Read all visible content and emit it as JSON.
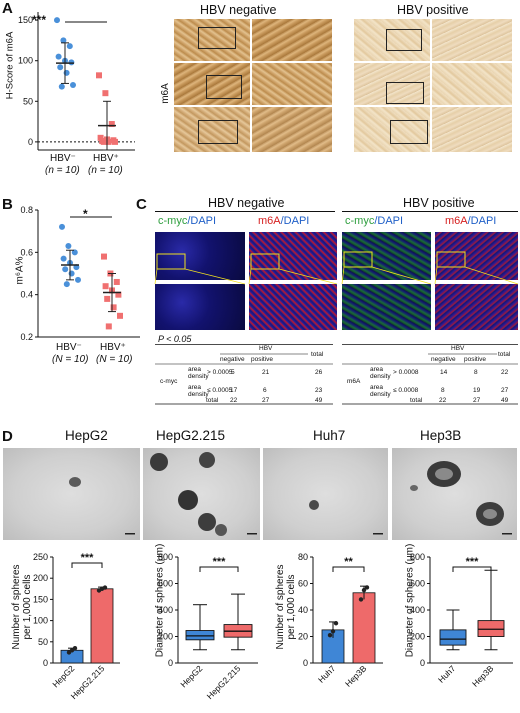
{
  "panels": {
    "A": {
      "label": "A",
      "ylabel": "H-Score of m6A",
      "yticks": [
        "150",
        "100",
        "50",
        "0"
      ],
      "sig": "***",
      "groups": [
        {
          "name": "HBV⁻",
          "n": "(n = 10)",
          "color": "#4a90d9"
        },
        {
          "name": "HBV⁺",
          "n": "(n = 10)",
          "color": "#f07070"
        }
      ],
      "neg_title": "HBV negative",
      "pos_title": "HBV positive",
      "row_label": "m6A"
    },
    "B": {
      "label": "B",
      "ylabel": "m⁶A%",
      "yticks": [
        "0.8",
        "0.6",
        "0.4",
        "0.2"
      ],
      "sig": "*",
      "groups": [
        {
          "name": "HBV⁻",
          "n": "(N = 10)"
        },
        {
          "name": "HBV⁺",
          "n": "(N = 10)"
        }
      ]
    },
    "C": {
      "label": "C",
      "neg_title": "HBV negative",
      "pos_title": "HBV positive",
      "col_labels": [
        {
          "a": "c-myc",
          "b": "/DAPI",
          "color": "#2e9e3e"
        },
        {
          "a": "m6A",
          "b": "/DAPI",
          "color": "#d62020"
        },
        {
          "a": "c-myc",
          "b": "/DAPI",
          "color": "#2e9e3e"
        },
        {
          "a": "m6A",
          "b": "/DAPI",
          "color": "#d62020"
        }
      ],
      "pvalue": "P < 0.05",
      "table1": {
        "hbv": "HBV",
        "cols": [
          "negative",
          "positive",
          "total"
        ],
        "rowgroup": "c-myc",
        "rows": [
          {
            "label": "area density",
            "cond": "> 0.0005",
            "vals": [
              "5",
              "21",
              "26"
            ]
          },
          {
            "label": "area density",
            "cond": "≤ 0.0005",
            "vals": [
              "17",
              "6",
              "23"
            ]
          }
        ],
        "total": {
          "label": "total",
          "vals": [
            "22",
            "27",
            "49"
          ]
        }
      },
      "table2": {
        "hbv": "HBV",
        "cols": [
          "negative",
          "positive",
          "total"
        ],
        "rowgroup": "m6A",
        "rows": [
          {
            "label": "area density",
            "cond": "> 0.0008",
            "vals": [
              "14",
              "8",
              "22"
            ]
          },
          {
            "label": "area density",
            "cond": "≤ 0.0008",
            "vals": [
              "8",
              "19",
              "27"
            ]
          }
        ],
        "total": {
          "label": "total",
          "vals": [
            "22",
            "27",
            "49"
          ]
        }
      }
    },
    "D": {
      "label": "D",
      "cell_lines": [
        "HepG2",
        "HepG2.215",
        "Huh7",
        "Hep3B"
      ],
      "chart1": {
        "ylabel1": "Number of spheres",
        "ylabel2": "per 1,000 cells",
        "yticks": [
          "250",
          "200",
          "150",
          "100",
          "50",
          "0"
        ],
        "sig": "***",
        "xlabels": [
          "HepG2",
          "HepG2.215"
        ]
      },
      "chart2": {
        "ylabel": "Diameter of spheres (μm)",
        "yticks": [
          "800",
          "600",
          "400",
          "200",
          "0"
        ],
        "sig": "***",
        "xlabels": [
          "HepG2",
          "HepG2.215"
        ]
      },
      "chart3": {
        "ylabel1": "Number of spheres",
        "ylabel2": "per 1,000 cells",
        "yticks": [
          "80",
          "60",
          "40",
          "20",
          "0"
        ],
        "sig": "**",
        "xlabels": [
          "Huh7",
          "Hep3B"
        ]
      },
      "chart4": {
        "ylabel": "Diameter of spheres (μm)",
        "yticks": [
          "800",
          "600",
          "400",
          "200",
          "0"
        ],
        "sig": "***",
        "xlabels": [
          "Huh7",
          "Hep3B"
        ]
      }
    }
  },
  "chart_data": [
    {
      "type": "scatter",
      "panel": "A",
      "categories": [
        "HBV⁻",
        "HBV⁺"
      ],
      "ylabel": "H-Score of m6A",
      "ylim": [
        -10,
        160
      ],
      "series": [
        {
          "name": "HBV⁻",
          "values": [
            150,
            125,
            118,
            105,
            100,
            98,
            92,
            85,
            70,
            68
          ],
          "mean": 97,
          "sd": 25
        },
        {
          "name": "HBV⁺",
          "values": [
            82,
            60,
            22,
            5,
            3,
            2,
            1,
            0,
            0,
            0
          ],
          "mean": 20,
          "sd": 30
        }
      ]
    },
    {
      "type": "scatter",
      "panel": "B",
      "categories": [
        "HBV⁻",
        "HBV⁺"
      ],
      "ylabel": "m⁶A%",
      "ylim": [
        0.2,
        0.8
      ],
      "series": [
        {
          "name": "HBV⁻",
          "values": [
            0.72,
            0.63,
            0.6,
            0.57,
            0.55,
            0.53,
            0.52,
            0.5,
            0.47,
            0.45
          ],
          "mean": 0.54,
          "sd": 0.07
        },
        {
          "name": "HBV⁺",
          "values": [
            0.58,
            0.5,
            0.46,
            0.44,
            0.42,
            0.4,
            0.38,
            0.34,
            0.3,
            0.25
          ],
          "mean": 0.41,
          "sd": 0.09
        }
      ]
    },
    {
      "type": "bar",
      "panel": "D1",
      "categories": [
        "HepG2",
        "HepG2.215"
      ],
      "values": [
        30,
        175
      ],
      "errors": [
        5,
        4
      ],
      "points": [
        [
          25,
          30,
          35
        ],
        [
          171,
          175,
          178
        ]
      ],
      "ylim": [
        0,
        250
      ],
      "colors": [
        "#3f86d6",
        "#ee6a6a"
      ]
    },
    {
      "type": "box",
      "panel": "D2",
      "categories": [
        "HepG2",
        "HepG2.215"
      ],
      "boxes": [
        {
          "min": 100,
          "q1": 175,
          "median": 205,
          "q3": 245,
          "max": 440
        },
        {
          "min": 100,
          "q1": 195,
          "median": 240,
          "q3": 290,
          "max": 520
        }
      ],
      "ylim": [
        0,
        800
      ],
      "colors": [
        "#3f86d6",
        "#ee6a6a"
      ]
    },
    {
      "type": "bar",
      "panel": "D3",
      "categories": [
        "Huh7",
        "Hep3B"
      ],
      "values": [
        25,
        53
      ],
      "errors": [
        6,
        5
      ],
      "points": [
        [
          21,
          24,
          30
        ],
        [
          48,
          55,
          57
        ]
      ],
      "ylim": [
        0,
        80
      ],
      "colors": [
        "#3f86d6",
        "#ee6a6a"
      ]
    },
    {
      "type": "box",
      "panel": "D4",
      "categories": [
        "Huh7",
        "Hep3B"
      ],
      "boxes": [
        {
          "min": 100,
          "q1": 135,
          "median": 180,
          "q3": 250,
          "max": 400
        },
        {
          "min": 100,
          "q1": 200,
          "median": 255,
          "q3": 320,
          "max": 700
        }
      ],
      "ylim": [
        0,
        800
      ],
      "colors": [
        "#3f86d6",
        "#ee6a6a"
      ]
    }
  ]
}
